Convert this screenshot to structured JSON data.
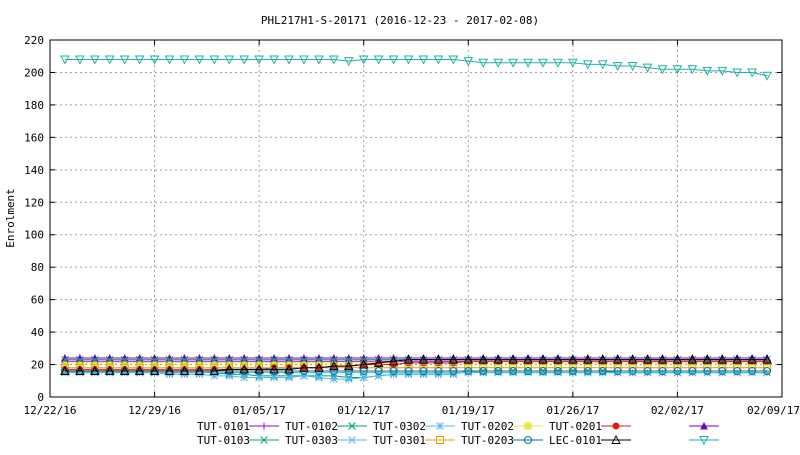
{
  "chart_data": {
    "type": "line",
    "title": "PHL217H1-S-20171 (2016-12-23 - 2017-02-08)",
    "ylabel": "Enrolment",
    "xlabel": "",
    "ylim": [
      0,
      220
    ],
    "yticks": [
      0,
      20,
      40,
      60,
      80,
      100,
      120,
      140,
      160,
      180,
      200,
      220
    ],
    "xlim": [
      "2016-12-22",
      "2017-02-09"
    ],
    "xticks": [
      {
        "date": "2016-12-22",
        "label": "12/22/16"
      },
      {
        "date": "2016-12-29",
        "label": "12/29/16"
      },
      {
        "date": "2017-01-05",
        "label": "01/05/17"
      },
      {
        "date": "2017-01-12",
        "label": "01/12/17"
      },
      {
        "date": "2017-01-19",
        "label": "01/19/17"
      },
      {
        "date": "2017-01-26",
        "label": "01/26/17"
      },
      {
        "date": "2017-02-02",
        "label": "02/02/17"
      },
      {
        "date": "2017-02-09",
        "label": "02/09/17"
      }
    ],
    "grid": true,
    "legend_position": "bottom",
    "x": [
      "2016-12-23",
      "2016-12-24",
      "2016-12-25",
      "2016-12-26",
      "2016-12-27",
      "2016-12-28",
      "2016-12-29",
      "2016-12-30",
      "2016-12-31",
      "2017-01-01",
      "2017-01-02",
      "2017-01-03",
      "2017-01-04",
      "2017-01-05",
      "2017-01-06",
      "2017-01-07",
      "2017-01-08",
      "2017-01-09",
      "2017-01-10",
      "2017-01-11",
      "2017-01-12",
      "2017-01-13",
      "2017-01-14",
      "2017-01-15",
      "2017-01-16",
      "2017-01-17",
      "2017-01-18",
      "2017-01-19",
      "2017-01-20",
      "2017-01-21",
      "2017-01-22",
      "2017-01-23",
      "2017-01-24",
      "2017-01-25",
      "2017-01-26",
      "2017-01-27",
      "2017-01-28",
      "2017-01-29",
      "2017-01-30",
      "2017-01-31",
      "2017-02-01",
      "2017-02-02",
      "2017-02-03",
      "2017-02-04",
      "2017-02-05",
      "2017-02-06",
      "2017-02-07",
      "2017-02-08"
    ],
    "series": [
      {
        "name": "TUT-0101",
        "color": "#9400d3",
        "marker": "plus",
        "values": [
          22,
          22,
          22,
          22,
          22,
          22,
          22,
          22,
          22,
          22,
          22,
          22,
          22,
          22,
          22,
          22,
          22,
          22,
          22,
          22,
          22,
          22,
          22,
          22,
          22,
          22,
          22,
          22,
          22,
          22,
          22,
          22,
          22,
          22,
          22,
          22,
          22,
          22,
          22,
          22,
          22,
          22,
          22,
          22,
          22,
          22,
          22,
          22
        ]
      },
      {
        "name": "TUT-0102",
        "color": "#009e73",
        "marker": "cross",
        "values": [
          15,
          15,
          15,
          15,
          15,
          15,
          15,
          15,
          15,
          15,
          15,
          14,
          14,
          13,
          13,
          13,
          13,
          13,
          13,
          12,
          12,
          13,
          14,
          14,
          14,
          14,
          14,
          16,
          16,
          16,
          16,
          16,
          16,
          16,
          16,
          16,
          16,
          15,
          15,
          15,
          15,
          15,
          15,
          15,
          15,
          15,
          15,
          15
        ]
      },
      {
        "name": "TUT-0302",
        "color": "#56b4e9",
        "marker": "asterisk",
        "values": [
          15,
          15,
          15,
          15,
          15,
          15,
          15,
          14,
          14,
          14,
          13,
          13,
          12,
          12,
          12,
          12,
          13,
          12,
          11,
          11,
          12,
          13,
          14,
          14,
          14,
          14,
          14,
          16,
          15,
          15,
          15,
          15,
          15,
          15,
          15,
          15,
          15,
          15,
          15,
          15,
          15,
          15,
          15,
          15,
          15,
          15,
          15,
          15
        ]
      },
      {
        "name": "TUT-0202",
        "color": "#f0e442",
        "marker": "square-filled",
        "values": [
          21,
          21,
          21,
          21,
          21,
          21,
          21,
          21,
          21,
          21,
          21,
          21,
          21,
          21,
          21,
          21,
          21,
          21,
          21,
          21,
          21,
          21,
          21,
          21,
          21,
          21,
          21,
          21,
          21,
          21,
          21,
          21,
          21,
          21,
          21,
          21,
          21,
          21,
          21,
          21,
          21,
          21,
          21,
          21,
          21,
          21,
          21,
          21
        ]
      },
      {
        "name": "TUT-0201",
        "color": "#e41a1c",
        "marker": "circle-filled",
        "values": [
          17,
          17,
          17,
          17,
          17,
          17,
          17,
          17,
          17,
          17,
          17,
          17,
          17,
          17,
          18,
          18,
          18,
          18,
          19,
          19,
          20,
          20,
          20,
          21,
          21,
          21,
          21,
          22,
          22,
          22,
          22,
          22,
          22,
          22,
          22,
          22,
          22,
          22,
          22,
          22,
          22,
          22,
          22,
          22,
          22,
          22,
          22,
          22
        ]
      },
      {
        "name": "",
        "color": "#7b00c0",
        "marker": "triangle-filled",
        "values": [
          24,
          24,
          24,
          24,
          24,
          24,
          24,
          24,
          24,
          24,
          24,
          24,
          24,
          24,
          24,
          24,
          24,
          24,
          24,
          24,
          24,
          24,
          24,
          24,
          24,
          24,
          24,
          24,
          24,
          24,
          24,
          24,
          24,
          24,
          24,
          24,
          24,
          24,
          24,
          24,
          24,
          24,
          24,
          24,
          24,
          24,
          24,
          24
        ]
      },
      {
        "name": "TUT-0103",
        "color": "#1b9e77",
        "marker": "x",
        "values": [
          23,
          23,
          23,
          23,
          23,
          23,
          23,
          23,
          23,
          23,
          23,
          23,
          23,
          23,
          23,
          23,
          23,
          23,
          23,
          23,
          23,
          23,
          23,
          23,
          23,
          23,
          23,
          23,
          23,
          23,
          23,
          23,
          23,
          23,
          23,
          23,
          23,
          23,
          23,
          23,
          23,
          23,
          23,
          23,
          23,
          23,
          23,
          23
        ]
      },
      {
        "name": "TUT-0303",
        "color": "#4db8e0",
        "marker": "x",
        "values": [
          15,
          15,
          15,
          15,
          15,
          15,
          15,
          15,
          15,
          15,
          15,
          15,
          15,
          15,
          15,
          15,
          15,
          15,
          15,
          15,
          15,
          15,
          15,
          15,
          15,
          15,
          15,
          15,
          15,
          15,
          15,
          15,
          15,
          15,
          15,
          15,
          15,
          15,
          15,
          15,
          15,
          15,
          15,
          15,
          15,
          15,
          15,
          15
        ]
      },
      {
        "name": "TUT-0301",
        "color": "#e69f00",
        "marker": "square",
        "values": [
          18,
          18,
          18,
          18,
          18,
          18,
          18,
          18,
          18,
          18,
          18,
          18,
          18,
          18,
          18,
          18,
          18,
          18,
          18,
          18,
          18,
          18,
          18,
          18,
          18,
          18,
          18,
          18,
          18,
          18,
          18,
          18,
          18,
          18,
          18,
          18,
          18,
          18,
          18,
          18,
          18,
          18,
          18,
          18,
          18,
          18,
          18,
          18
        ]
      },
      {
        "name": "TUT-0203",
        "color": "#0072b2",
        "marker": "circle",
        "values": [
          16,
          16,
          16,
          16,
          16,
          16,
          16,
          16,
          16,
          16,
          16,
          16,
          16,
          16,
          16,
          16,
          16,
          16,
          16,
          16,
          16,
          16,
          16,
          16,
          16,
          16,
          16,
          16,
          16,
          16,
          16,
          16,
          16,
          16,
          16,
          16,
          16,
          16,
          16,
          16,
          16,
          16,
          16,
          16,
          16,
          16,
          16,
          16
        ]
      },
      {
        "name": "LEC-0101",
        "color": "#000000",
        "marker": "triangle",
        "values": [
          16,
          16,
          16,
          16,
          16,
          16,
          16,
          16,
          16,
          16,
          16,
          17,
          17,
          17,
          17,
          17,
          18,
          18,
          19,
          19,
          20,
          21,
          22,
          23,
          23,
          23,
          23,
          23,
          23,
          23,
          23,
          23,
          23,
          23,
          23,
          23,
          23,
          23,
          23,
          23,
          23,
          23,
          23,
          23,
          23,
          23,
          23,
          23
        ]
      },
      {
        "name": "",
        "color": "#20b2aa",
        "marker": "triangle-down",
        "values": [
          208,
          208,
          208,
          208,
          208,
          208,
          208,
          208,
          208,
          208,
          208,
          208,
          208,
          208,
          208,
          208,
          208,
          208,
          208,
          207,
          208,
          208,
          208,
          208,
          208,
          208,
          208,
          207,
          206,
          206,
          206,
          206,
          206,
          206,
          206,
          205,
          205,
          204,
          204,
          203,
          202,
          202,
          202,
          201,
          201,
          200,
          200,
          198
        ]
      }
    ]
  }
}
